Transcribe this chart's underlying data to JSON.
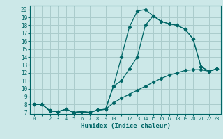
{
  "xlabel": "Humidex (Indice chaleur)",
  "bg_color": "#cce8e8",
  "grid_color": "#aacccc",
  "line_color": "#006666",
  "xlim": [
    -0.5,
    23.5
  ],
  "ylim": [
    6.8,
    20.5
  ],
  "yticks": [
    7,
    8,
    9,
    10,
    11,
    12,
    13,
    14,
    15,
    16,
    17,
    18,
    19,
    20
  ],
  "xticks": [
    0,
    1,
    2,
    3,
    4,
    5,
    6,
    7,
    8,
    9,
    10,
    11,
    12,
    13,
    14,
    15,
    16,
    17,
    18,
    19,
    20,
    21,
    22,
    23
  ],
  "line1_x": [
    0,
    1,
    2,
    3,
    4,
    5,
    6,
    7,
    8,
    9,
    10,
    11,
    12,
    13,
    14,
    15,
    16,
    17,
    18,
    19,
    20,
    21,
    22,
    23
  ],
  "line1_y": [
    8.0,
    8.0,
    7.2,
    7.1,
    7.4,
    7.0,
    7.1,
    7.0,
    7.3,
    7.4,
    8.2,
    8.8,
    9.3,
    9.8,
    10.3,
    10.8,
    11.3,
    11.7,
    12.0,
    12.3,
    12.4,
    12.4,
    12.2,
    12.5
  ],
  "line2_x": [
    0,
    1,
    2,
    3,
    4,
    5,
    6,
    7,
    8,
    9,
    10,
    11,
    12,
    13,
    14,
    15,
    16,
    17,
    18,
    19,
    20,
    21,
    22,
    23
  ],
  "line2_y": [
    8.0,
    8.0,
    7.2,
    7.1,
    7.4,
    7.0,
    7.1,
    7.0,
    7.3,
    7.4,
    10.3,
    14.0,
    17.8,
    19.8,
    20.0,
    19.2,
    18.5,
    18.2,
    18.0,
    17.5,
    16.3,
    12.8,
    12.2,
    12.5
  ],
  "line3_x": [
    0,
    1,
    2,
    3,
    4,
    5,
    6,
    7,
    8,
    9,
    10,
    11,
    12,
    13,
    14,
    15,
    16,
    17,
    18,
    19,
    20,
    21,
    22,
    23
  ],
  "line3_y": [
    8.0,
    8.0,
    7.2,
    7.1,
    7.4,
    7.0,
    7.1,
    7.0,
    7.3,
    7.4,
    10.3,
    11.0,
    12.5,
    14.0,
    18.0,
    19.2,
    18.5,
    18.2,
    18.0,
    17.5,
    16.3,
    12.8,
    12.2,
    12.5
  ]
}
